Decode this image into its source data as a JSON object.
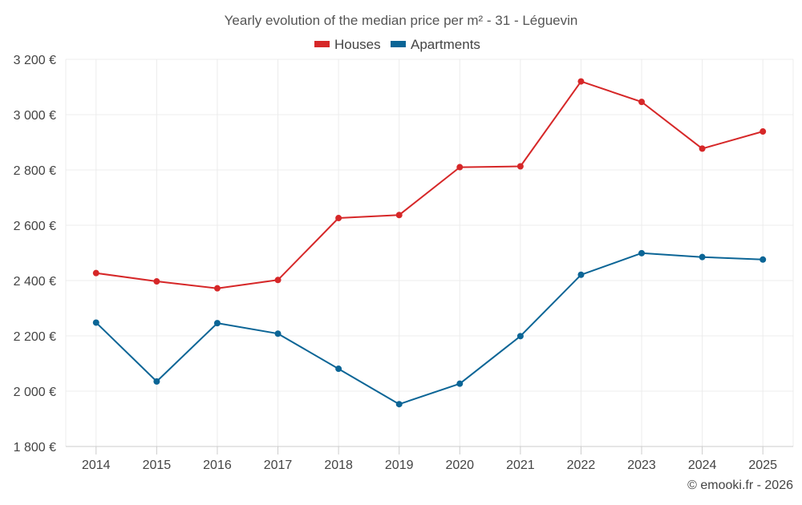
{
  "chart_data": {
    "type": "line",
    "title": "Yearly evolution of the median price per m² - 31 - Léguevin",
    "categories": [
      "2014",
      "2015",
      "2016",
      "2017",
      "2018",
      "2019",
      "2020",
      "2021",
      "2022",
      "2023",
      "2024",
      "2025"
    ],
    "series": [
      {
        "name": "Houses",
        "color": "#d62728",
        "values": [
          2427,
          2397,
          2372,
          2402,
          2626,
          2637,
          2810,
          2813,
          3120,
          3046,
          2877,
          2939
        ]
      },
      {
        "name": "Apartments",
        "color": "#0b6596",
        "values": [
          2248,
          2035,
          2246,
          2208,
          2081,
          1953,
          2027,
          2199,
          2421,
          2499,
          2485,
          2476
        ]
      }
    ],
    "ylim": [
      1800,
      3200
    ],
    "yticks": [
      1800,
      2000,
      2200,
      2400,
      2600,
      2800,
      3000,
      3200
    ],
    "ytick_labels": [
      "1 800 €",
      "2 000 €",
      "2 200 €",
      "2 400 €",
      "2 600 €",
      "2 800 €",
      "3 000 €",
      "3 200 €"
    ],
    "xlabel": "",
    "ylabel": "",
    "legend_position": "top-center",
    "grid": true
  },
  "credit": "© emooki.fr - 2026"
}
